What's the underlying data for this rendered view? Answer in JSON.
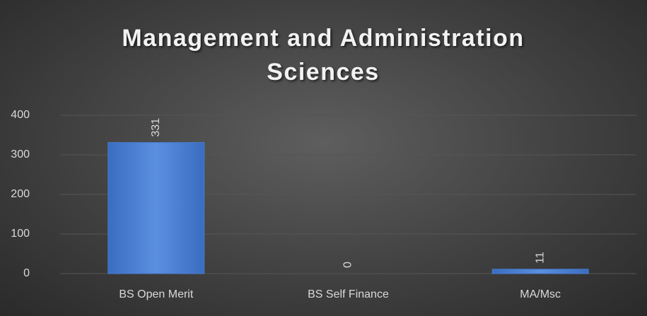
{
  "chart_data": {
    "type": "bar",
    "title": "Management and Administration Sciences",
    "categories": [
      "BS Open Merit",
      "BS Self Finance",
      "MA/Msc"
    ],
    "values": [
      331,
      0,
      11
    ],
    "color": "#4a7fd4",
    "ylim": [
      0,
      400
    ],
    "yticks": [
      0,
      100,
      200,
      300,
      400
    ],
    "grid": true
  }
}
